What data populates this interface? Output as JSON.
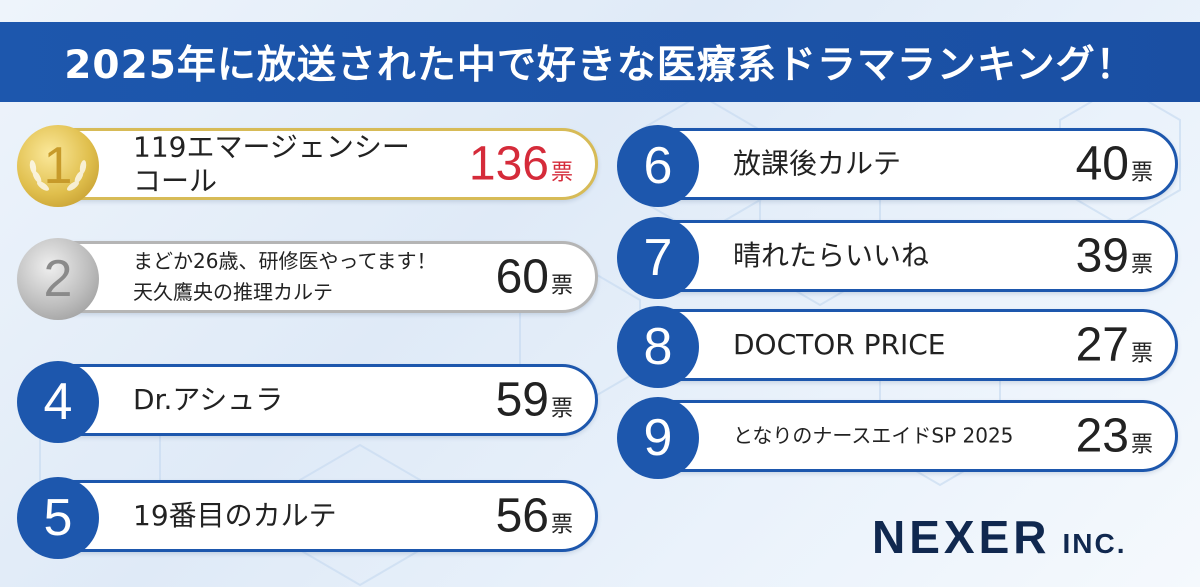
{
  "header": {
    "title": "2025年に放送された中で好きな医療系ドラマランキング！"
  },
  "chart_data": {
    "type": "table",
    "title": "2025年に放送された中で好きな医療系ドラマランキング！",
    "unit": "票",
    "rows": [
      {
        "rank": "1",
        "lines": [
          "119エマージェンシー",
          "コール"
        ],
        "votes": "136"
      },
      {
        "rank": "2",
        "lines": [
          "まどか26歳、研修医やってます！",
          "天久鷹央の推理カルテ"
        ],
        "votes": "60"
      },
      {
        "rank": "4",
        "lines": [
          "Dr.アシュラ"
        ],
        "votes": "59"
      },
      {
        "rank": "5",
        "lines": [
          "19番目のカルテ"
        ],
        "votes": "56"
      },
      {
        "rank": "6",
        "lines": [
          "放課後カルテ"
        ],
        "votes": "40"
      },
      {
        "rank": "7",
        "lines": [
          "晴れたらいいね"
        ],
        "votes": "39"
      },
      {
        "rank": "8",
        "lines": [
          "DOCTOR PRICE"
        ],
        "votes": "27"
      },
      {
        "rank": "9",
        "lines": [
          "となりのナースエイドSP 2025"
        ],
        "votes": "23"
      }
    ]
  },
  "logo": {
    "main": "NEXER",
    "sub": "INC."
  },
  "colors": {
    "header_bg": "#1d57ad",
    "badge": "#1d57ad",
    "gold": "#d7bb57",
    "silver": "#b5b5b5",
    "top_votes": "#d52b3a"
  }
}
